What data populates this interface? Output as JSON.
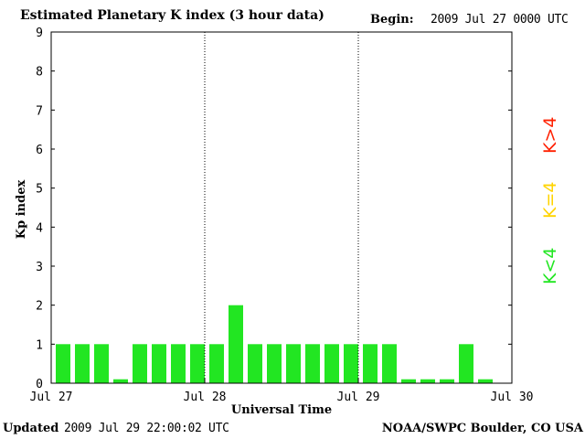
{
  "header": {
    "title": "Estimated Planetary K index (3 hour data)",
    "begin_label": "Begin:",
    "begin_value": "2009 Jul 27 0000 UTC"
  },
  "footer": {
    "updated_label": "Updated",
    "updated_value": "2009 Jul 29 22:00:02 UTC",
    "source": "NOAA/SWPC Boulder, CO USA"
  },
  "legend": [
    {
      "label": "K>4",
      "color": "#ff2000"
    },
    {
      "label": "K=4",
      "color": "#ffd400"
    },
    {
      "label": "K<4",
      "color": "#22e622"
    }
  ],
  "chart_data": {
    "type": "bar",
    "title": "Estimated Planetary K index (3 hour data)",
    "xlabel": "Universal Time",
    "ylabel": "Kp index",
    "ylim": [
      0,
      9
    ],
    "yticks": [
      0,
      1,
      2,
      3,
      4,
      5,
      6,
      7,
      8,
      9
    ],
    "x_tick_labels": [
      "Jul 27",
      "Jul 28",
      "Jul 29",
      "Jul 30"
    ],
    "bars_per_day": 8,
    "day_separators": [
      "Jul 28",
      "Jul 29"
    ],
    "bar_color": "#22e622",
    "values": [
      1,
      1,
      1,
      0.1,
      1,
      1,
      1,
      1,
      1,
      2,
      1,
      1,
      1,
      1,
      1,
      1,
      1,
      1,
      0.1,
      0.1,
      0.1,
      1,
      0.1
    ]
  }
}
